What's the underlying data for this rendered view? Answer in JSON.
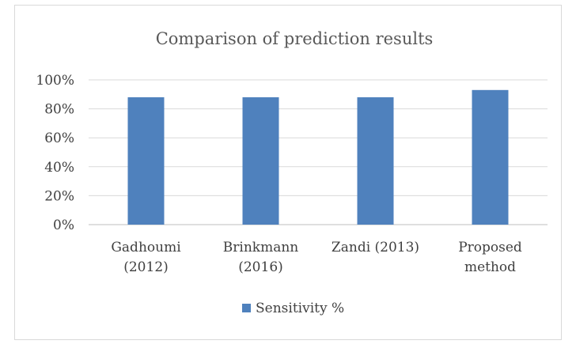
{
  "chart_data": {
    "type": "bar",
    "title": "Comparison of prediction results",
    "categories": [
      [
        "Gadhoumi",
        "(2012)"
      ],
      [
        "Brinkmann",
        "(2016)"
      ],
      [
        "Zandi (2013)"
      ],
      [
        "Proposed",
        "method"
      ]
    ],
    "series": [
      {
        "name": "Sensitivity %",
        "values": [
          88,
          88,
          88,
          93
        ],
        "color": "#4f81bd"
      }
    ],
    "ylim": [
      0,
      100
    ],
    "yticks": [
      "0%",
      "20%",
      "40%",
      "60%",
      "80%",
      "100%"
    ],
    "grid": true,
    "legend": "bottom"
  }
}
